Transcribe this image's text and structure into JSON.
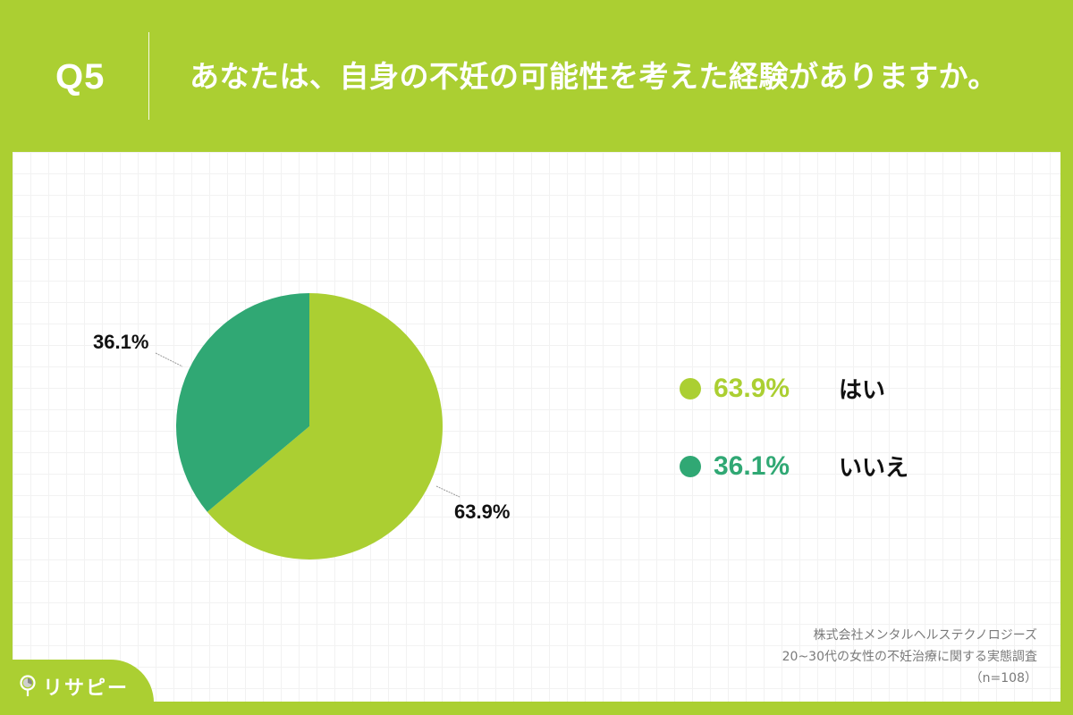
{
  "header": {
    "question_number": "Q5",
    "question_text": "あなたは、自身の不妊の可能性を考えた経験がありますか。"
  },
  "colors": {
    "brand_green": "#abcf32",
    "yes": "#abcf32",
    "no": "#30a874"
  },
  "chart_data": {
    "type": "pie",
    "title": "あなたは、自身の不妊の可能性を考えた経験がありますか。",
    "categories": [
      "はい",
      "いいえ"
    ],
    "values": [
      63.9,
      36.1
    ],
    "unit": "%",
    "colors": [
      "#abcf32",
      "#30a874"
    ],
    "start_angle_deg": 0,
    "direction": "clockwise",
    "data_labels": [
      "63.9%",
      "36.1%"
    ],
    "legend_position": "right",
    "n": 108
  },
  "pie_labels": {
    "yes": "63.9%",
    "no": "36.1%"
  },
  "legend": {
    "items": [
      {
        "pct": "63.9%",
        "label": "はい",
        "color": "#abcf32"
      },
      {
        "pct": "36.1%",
        "label": "いいえ",
        "color": "#30a874"
      }
    ]
  },
  "source": {
    "company": "株式会社メンタルヘルステクノロジーズ",
    "survey": "20~30代の女性の不妊治療に関する実態調査",
    "sample": "（n=108）"
  },
  "logo": {
    "text": "リサピー"
  }
}
